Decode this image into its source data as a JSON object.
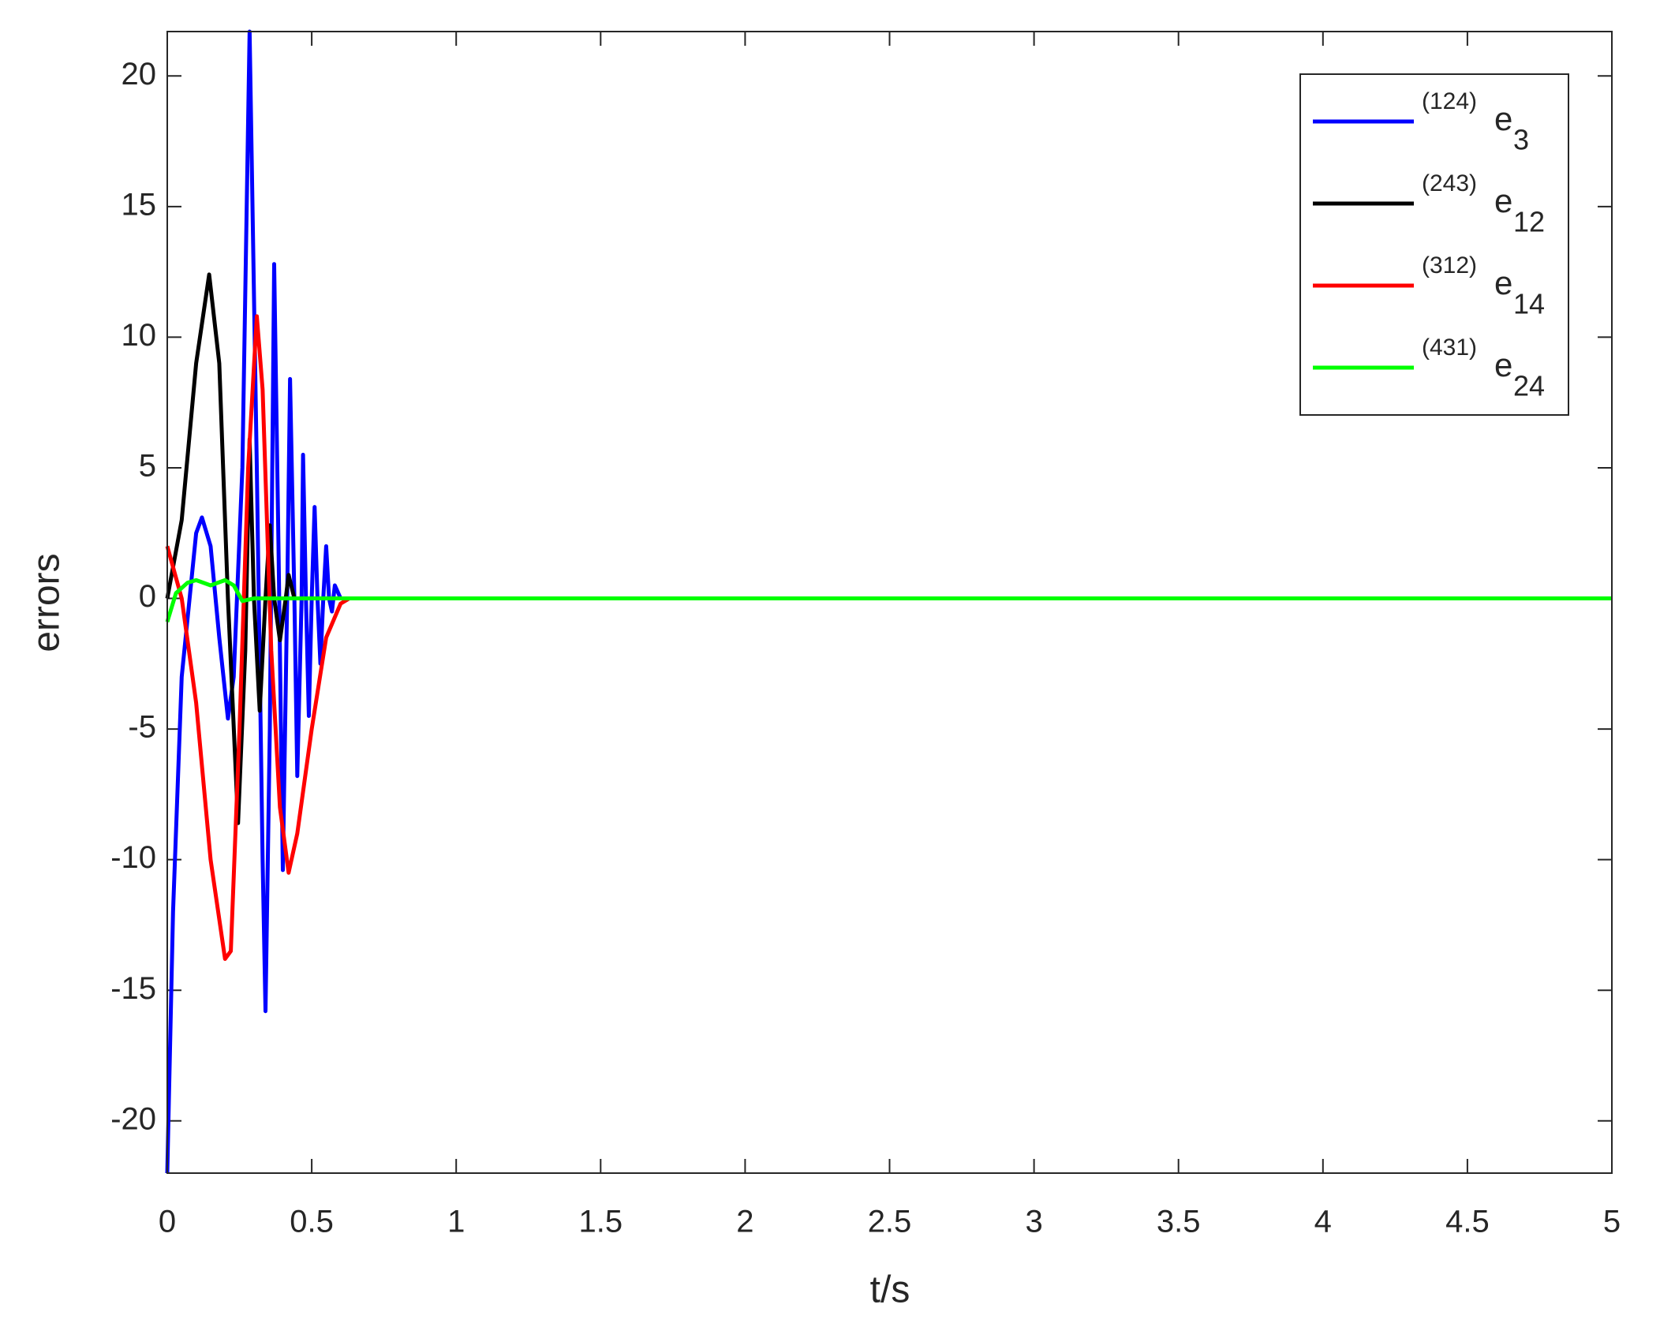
{
  "chart_data": {
    "type": "line",
    "xlabel": "t/s",
    "ylabel": "errors",
    "xlim": [
      0,
      5
    ],
    "ylim": [
      -22,
      21.7
    ],
    "xticks": [
      0,
      0.5,
      1,
      1.5,
      2,
      2.5,
      3,
      3.5,
      4,
      4.5,
      5
    ],
    "yticks": [
      -20,
      -15,
      -10,
      -5,
      0,
      5,
      10,
      15,
      20
    ],
    "grid": false,
    "legend": "upper-right",
    "series": [
      {
        "name": [
          "(124)",
          "e",
          "3"
        ],
        "color": "#0000ff",
        "x": [
          0,
          0.02,
          0.05,
          0.1,
          0.12,
          0.15,
          0.18,
          0.21,
          0.23,
          0.26,
          0.285,
          0.31,
          0.33,
          0.34,
          0.355,
          0.37,
          0.385,
          0.4,
          0.415,
          0.425,
          0.44,
          0.45,
          0.465,
          0.47,
          0.48,
          0.49,
          0.5,
          0.51,
          0.52,
          0.53,
          0.54,
          0.55,
          0.56,
          0.57,
          0.58,
          0.6,
          5
        ],
        "values": [
          -22,
          -12,
          -3,
          2.5,
          3.1,
          2,
          -1.5,
          -4.6,
          -3,
          5,
          21.7,
          5,
          -10,
          -15.8,
          -5,
          12.8,
          2,
          -10.4,
          0,
          8.4,
          0,
          -6.8,
          0,
          5.5,
          0,
          -4.5,
          0,
          3.5,
          0,
          -2.5,
          0,
          2,
          0,
          -0.5,
          0.5,
          0,
          0
        ]
      },
      {
        "name": [
          "(243)",
          "e",
          "12"
        ],
        "color": "#000000",
        "x": [
          0,
          0.05,
          0.1,
          0.145,
          0.18,
          0.21,
          0.245,
          0.27,
          0.285,
          0.3,
          0.32,
          0.34,
          0.355,
          0.37,
          0.39,
          0.41,
          0.42,
          0.44,
          0.5,
          5
        ],
        "values": [
          0,
          3,
          9,
          12.4,
          9,
          0,
          -8.6,
          -2,
          6.1,
          0,
          -4.3,
          0,
          2.8,
          0,
          -1.6,
          0,
          0.9,
          0,
          0,
          0
        ]
      },
      {
        "name": [
          "(312)",
          "e",
          "14"
        ],
        "color": "#ff0000",
        "x": [
          0,
          0.05,
          0.1,
          0.15,
          0.2,
          0.22,
          0.25,
          0.28,
          0.31,
          0.33,
          0.36,
          0.39,
          0.42,
          0.45,
          0.5,
          0.55,
          0.6,
          0.63,
          5
        ],
        "values": [
          2,
          0,
          -4,
          -10,
          -13.8,
          -13.5,
          -5,
          5,
          10.8,
          8,
          -2,
          -8,
          -10.5,
          -9,
          -5,
          -1.5,
          -0.2,
          0,
          0
        ]
      },
      {
        "name": [
          "(431)",
          "e",
          "24"
        ],
        "color": "#00ff00",
        "x": [
          0,
          0.03,
          0.07,
          0.1,
          0.15,
          0.2,
          0.23,
          0.26,
          0.3,
          5
        ],
        "values": [
          -0.9,
          0.2,
          0.6,
          0.7,
          0.5,
          0.7,
          0.5,
          -0.1,
          0,
          0
        ]
      }
    ]
  }
}
